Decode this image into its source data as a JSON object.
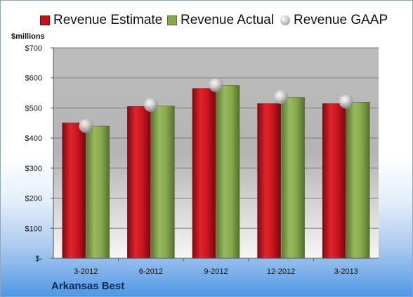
{
  "chart_data": {
    "type": "bar",
    "title": "",
    "ylabel": "$millions",
    "xlabel": "",
    "categories": [
      "3-2012",
      "6-2012",
      "9-2012",
      "12-2012",
      "3-2013"
    ],
    "series": [
      {
        "name": "Revenue Estimate",
        "type": "bar",
        "color": "#c0141c",
        "values": [
          450,
          505,
          565,
          515,
          515
        ]
      },
      {
        "name": "Revenue Actual",
        "type": "bar",
        "color": "#86a84c",
        "values": [
          440,
          507,
          575,
          535,
          519
        ]
      },
      {
        "name": "Revenue GAAP",
        "type": "scatter",
        "color": "#b7b7b7",
        "values": [
          440,
          510,
          576,
          536,
          521
        ]
      }
    ],
    "ylim": [
      0,
      700
    ],
    "y_ticks": [
      {
        "value": 0,
        "label": "$-"
      },
      {
        "value": 100,
        "label": "$100"
      },
      {
        "value": 200,
        "label": "$200"
      },
      {
        "value": 300,
        "label": "$300"
      },
      {
        "value": 400,
        "label": "$400"
      },
      {
        "value": 500,
        "label": "$500"
      },
      {
        "value": 600,
        "label": "$600"
      },
      {
        "value": 700,
        "label": "$700"
      }
    ],
    "grid": true,
    "legend_position": "top"
  },
  "legend": {
    "estimate": "Revenue Estimate",
    "actual": "Revenue Actual",
    "gaap": "Revenue GAAP"
  },
  "units_label": "$millions",
  "company": "Arkansas Best"
}
